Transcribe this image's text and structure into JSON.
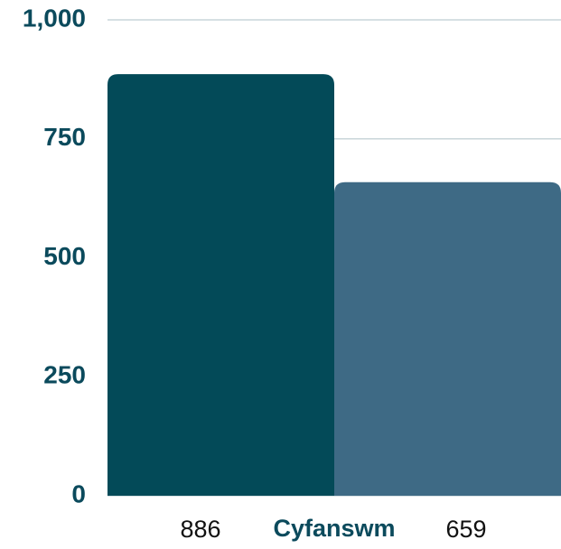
{
  "chart_data": {
    "type": "bar",
    "categories": [
      "Cyfanswm"
    ],
    "series": [
      {
        "color": "#034a58",
        "values": [
          886
        ]
      },
      {
        "color": "#3e6a85",
        "values": [
          659
        ]
      }
    ],
    "ylim": [
      0,
      1000
    ],
    "yticks": [
      0,
      250,
      500,
      750,
      {
        "value": 1000,
        "label": "1,000"
      }
    ],
    "grid": true
  }
}
